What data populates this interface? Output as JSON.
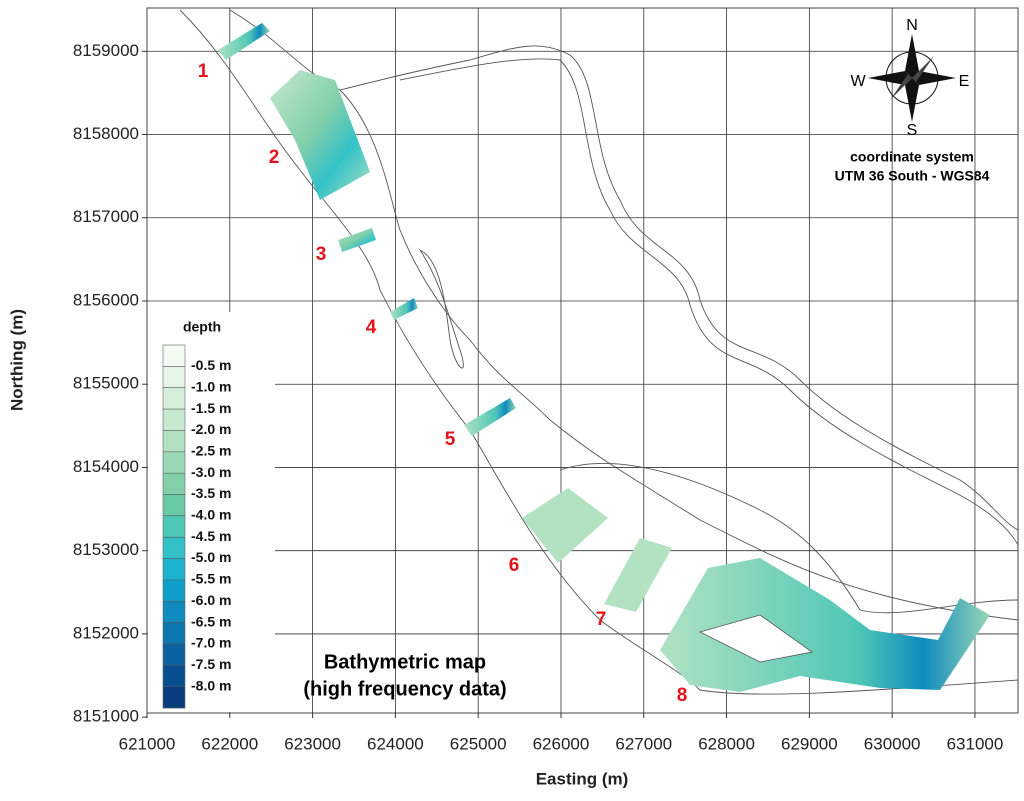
{
  "chart_data": {
    "type": "map",
    "title": [
      "Bathymetric map",
      "(high frequency data)"
    ],
    "x_label": "Easting (m)",
    "y_label": "Northing (m)",
    "xlim": [
      621000,
      631520
    ],
    "xticks": [
      621000,
      622000,
      623000,
      624000,
      625000,
      626000,
      627000,
      628000,
      629000,
      630000,
      631000
    ],
    "ylim": [
      8151050,
      8159520
    ],
    "yticks": [
      8151000,
      8152000,
      8153000,
      8154000,
      8155000,
      8156000,
      8157000,
      8158000,
      8159000
    ],
    "grid": true,
    "sites": [
      "1",
      "2",
      "3",
      "4",
      "5",
      "6",
      "7",
      "8"
    ],
    "compass": {
      "n": "N",
      "s": "S",
      "e": "E",
      "w": "W"
    },
    "coordinate_system": [
      "coordinate system",
      "UTM 36 South - WGS84"
    ],
    "legend": {
      "title": "depth",
      "labels": [
        "-0.5 m",
        "-1.0 m",
        "-1.5 m",
        "-2.0 m",
        "-2.5 m",
        "-3.0 m",
        "-3.5 m",
        "-4.0 m",
        "-4.5 m",
        "-5.0 m",
        "-5.5 m",
        "-6.0 m",
        "-6.5 m",
        "-7.0 m",
        "-7.5 m",
        "-8.0 m"
      ],
      "colors": [
        "#f3fbf3",
        "#e6f5e8",
        "#d6efdb",
        "#c6e9cf",
        "#b2e2c2",
        "#9ad8b5",
        "#82cfaa",
        "#6acaa8",
        "#4fc7b6",
        "#33c1c7",
        "#1bb3cf",
        "#109fca",
        "#0f8bbf",
        "#0d77b0",
        "#0b62a0",
        "#094e8e",
        "#083c7c"
      ]
    }
  }
}
